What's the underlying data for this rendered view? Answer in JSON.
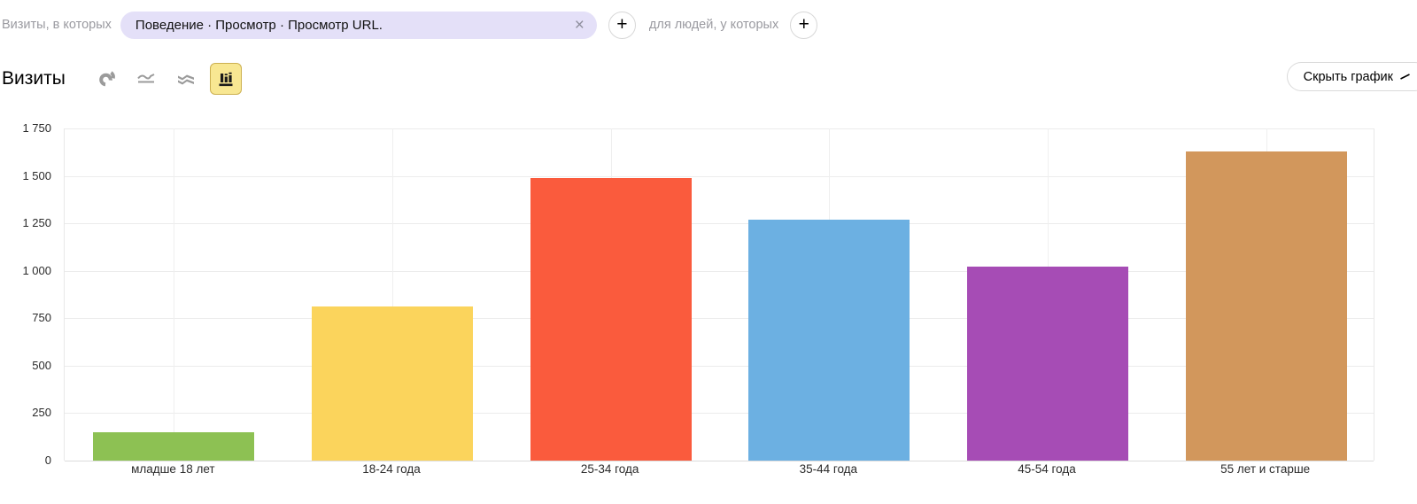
{
  "filter_bar": {
    "visits_condition_label": "Визиты, в которых",
    "segment_chip_text": "Поведение · Просмотр · Просмотр URL.",
    "chip_close_glyph": "×",
    "add_visit_condition_glyph": "+",
    "people_condition_label": "для людей, у которых",
    "add_people_condition_glyph": "+"
  },
  "toolbar": {
    "metric_title": "Визиты",
    "hide_chart_label": "Скрыть график",
    "chart_type_switcher": [
      {
        "name": "pie",
        "selected": false
      },
      {
        "name": "line",
        "selected": false
      },
      {
        "name": "stacked-area",
        "selected": false
      },
      {
        "name": "bar",
        "selected": true
      }
    ],
    "selected_button_bg": "#f8e792",
    "selected_button_border": "#ccb050",
    "icon_gray": "#9b9b9b"
  },
  "chart_data": {
    "type": "bar",
    "title": "Визиты",
    "categories": [
      "младше 18 лет",
      "18-24 года",
      "25-34 года",
      "35-44 года",
      "45-54 года",
      "55 лет и старше"
    ],
    "values": [
      150,
      810,
      1490,
      1270,
      1020,
      1630
    ],
    "colors": [
      "#8dc153",
      "#fbd45c",
      "#fa5b3d",
      "#6cb0e2",
      "#a64cb5",
      "#d2975c"
    ],
    "ylim": [
      0,
      1750
    ],
    "ytick_step": 250,
    "ytick_labels": [
      "0",
      "250",
      "500",
      "750",
      "1 000",
      "1 250",
      "1 500",
      "1 750"
    ],
    "grid": true,
    "legend": "none",
    "xlabel": "",
    "ylabel": ""
  }
}
